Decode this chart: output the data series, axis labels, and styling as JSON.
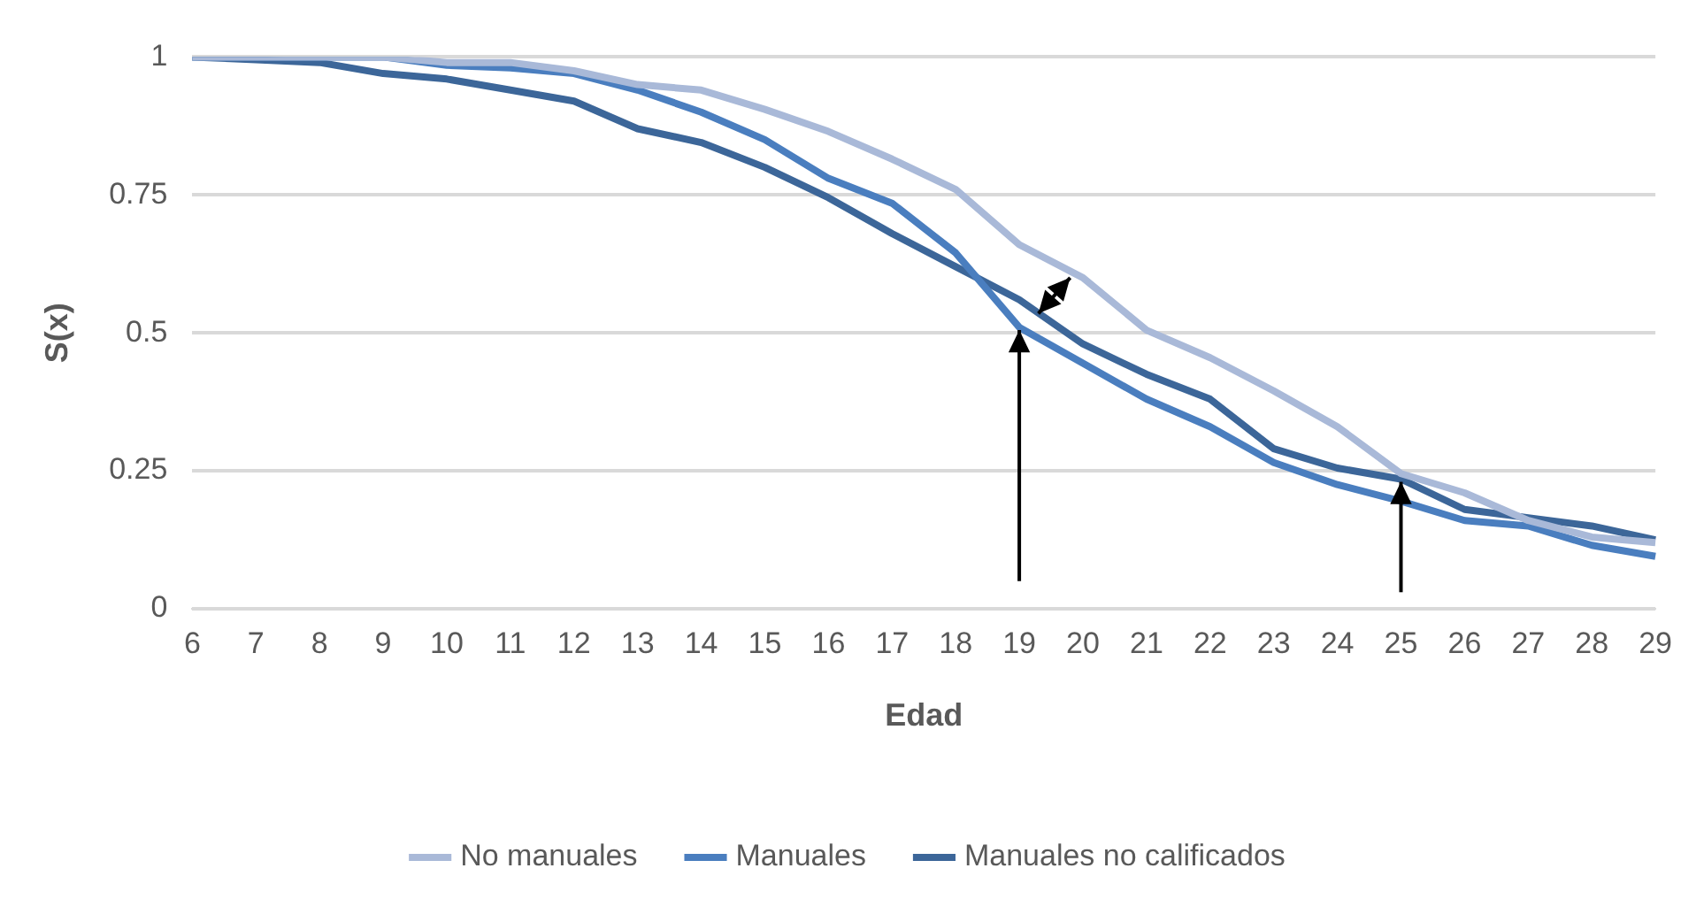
{
  "chart_data": {
    "type": "line",
    "xlabel": "Edad",
    "ylabel": "S(x)",
    "categories": [
      "6",
      "7",
      "8",
      "9",
      "10",
      "11",
      "12",
      "13",
      "14",
      "15",
      "16",
      "17",
      "18",
      "19",
      "20",
      "21",
      "22",
      "23",
      "24",
      "25",
      "26",
      "27",
      "28",
      "29"
    ],
    "series": [
      {
        "name": "No manuales",
        "color": "#a9b9d8",
        "values": [
          1,
          1,
          1,
          1,
          0.99,
          0.99,
          0.975,
          0.95,
          0.94,
          0.905,
          0.865,
          0.815,
          0.76,
          0.66,
          0.6,
          0.505,
          0.455,
          0.395,
          0.33,
          0.245,
          0.21,
          0.16,
          0.13,
          0.12
        ]
      },
      {
        "name": "Manuales",
        "color": "#4a7ebf",
        "values": [
          1,
          1,
          1,
          1,
          0.985,
          0.98,
          0.97,
          0.94,
          0.9,
          0.85,
          0.78,
          0.735,
          0.645,
          0.51,
          0.445,
          0.38,
          0.33,
          0.265,
          0.225,
          0.195,
          0.16,
          0.15,
          0.115,
          0.095
        ]
      },
      {
        "name": "Manuales no calificados",
        "color": "#3c6699",
        "values": [
          1,
          0.995,
          0.99,
          0.97,
          0.96,
          0.94,
          0.92,
          0.87,
          0.845,
          0.8,
          0.745,
          0.68,
          0.62,
          0.56,
          0.48,
          0.425,
          0.38,
          0.29,
          0.255,
          0.235,
          0.18,
          0.165,
          0.15,
          0.125
        ]
      }
    ],
    "ylim": [
      0,
      1
    ],
    "yticks": [
      0,
      0.25,
      0.5,
      0.75,
      1
    ],
    "grid": "y",
    "legend": "bottom",
    "marker": "none",
    "line_style": "solid"
  }
}
